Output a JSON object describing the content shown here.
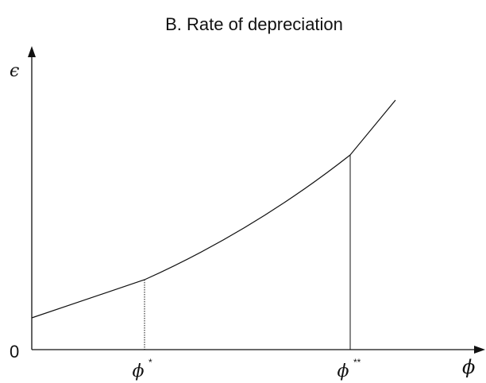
{
  "title": "B.  Rate of depreciation",
  "y_axis_label": "ϵ",
  "origin_label": "0",
  "x_axis_label": "ϕ",
  "markers": [
    {
      "symbol": "ϕ",
      "superscript": "*"
    },
    {
      "symbol": "ϕ",
      "superscript": "**"
    }
  ]
}
